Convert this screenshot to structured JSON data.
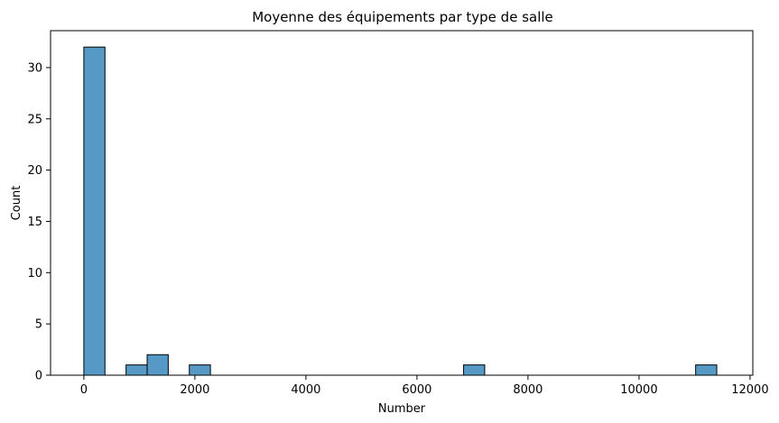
{
  "chart_data": {
    "type": "histogram",
    "title": "Moyenne des équipements par type de salle",
    "xlabel": "Number",
    "ylabel": "Count",
    "xlim": [
      -600,
      12050
    ],
    "ylim": [
      0,
      33.6
    ],
    "xticks": [
      0,
      2000,
      4000,
      6000,
      8000,
      10000,
      12000
    ],
    "yticks": [
      0,
      5,
      10,
      15,
      20,
      25,
      30
    ],
    "bar_color": "#5799c6",
    "edge_color": "#000000",
    "bins": [
      {
        "x0": 0,
        "x1": 380,
        "count": 32
      },
      {
        "x0": 760,
        "x1": 1140,
        "count": 1
      },
      {
        "x0": 1140,
        "x1": 1520,
        "count": 2
      },
      {
        "x0": 1900,
        "x1": 2280,
        "count": 1
      },
      {
        "x0": 6840,
        "x1": 7220,
        "count": 1
      },
      {
        "x0": 11020,
        "x1": 11400,
        "count": 1
      }
    ],
    "grid": false,
    "legend": "none"
  }
}
